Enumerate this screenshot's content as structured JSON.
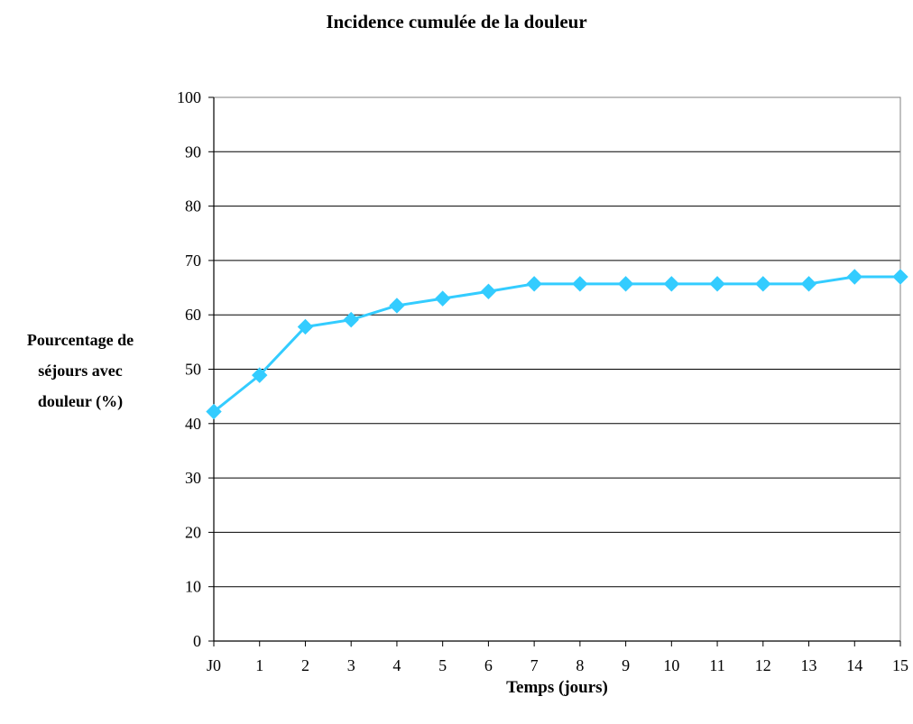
{
  "chart_data": {
    "type": "line",
    "title": "Incidence cumulée de la douleur",
    "xlabel": "Temps (jours)",
    "ylabel_lines": [
      "Pourcentage de",
      "séjours avec",
      "douleur (%)"
    ],
    "categories": [
      "J0",
      "1",
      "2",
      "3",
      "4",
      "5",
      "6",
      "7",
      "8",
      "9",
      "10",
      "11",
      "12",
      "13",
      "14",
      "15"
    ],
    "series": [
      {
        "values": [
          42.2,
          48.9,
          57.8,
          59.1,
          61.7,
          63.0,
          64.3,
          65.7,
          65.7,
          65.7,
          65.7,
          65.7,
          65.7,
          65.7,
          67.0,
          67.0
        ],
        "color": "#33CCFF",
        "marker": "diamond"
      }
    ],
    "ylim": [
      0,
      100
    ],
    "yticks": [
      0,
      10,
      20,
      30,
      40,
      50,
      60,
      70,
      80,
      90,
      100
    ],
    "grid": "horizontal",
    "legend": "none"
  }
}
